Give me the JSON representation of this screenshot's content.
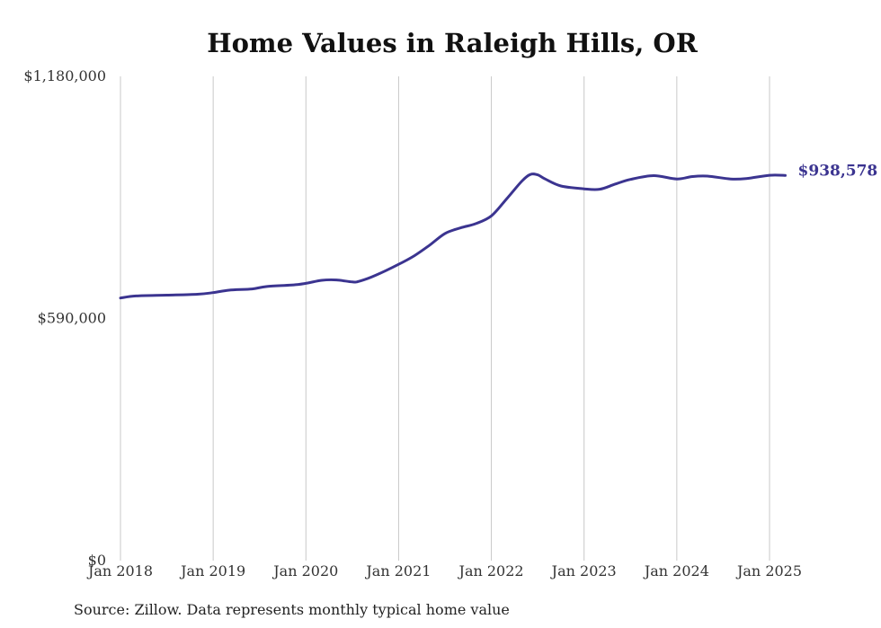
{
  "chart_data": {
    "type": "line",
    "title": "Home Values in Raleigh Hills, OR",
    "xlabel": "",
    "ylabel": "",
    "ylim": [
      0,
      1180000
    ],
    "yticks": [
      {
        "value": 0,
        "label": "$0"
      },
      {
        "value": 590000,
        "label": "$590,000"
      },
      {
        "value": 1180000,
        "label": "$1,180,000"
      }
    ],
    "xticks": [
      {
        "value": 2018.0,
        "label": "Jan 2018"
      },
      {
        "value": 2019.0,
        "label": "Jan 2019"
      },
      {
        "value": 2020.0,
        "label": "Jan 2020"
      },
      {
        "value": 2021.0,
        "label": "Jan 2021"
      },
      {
        "value": 2022.0,
        "label": "Jan 2022"
      },
      {
        "value": 2023.0,
        "label": "Jan 2023"
      },
      {
        "value": 2024.0,
        "label": "Jan 2024"
      },
      {
        "value": 2025.0,
        "label": "Jan 2025"
      }
    ],
    "xlim": [
      2018.0,
      2025.17
    ],
    "grid": "vertical",
    "series": [
      {
        "color": "#3b3490",
        "end_label": "$938,578",
        "points": [
          [
            2018.0,
            640000
          ],
          [
            2018.17,
            645000
          ],
          [
            2018.5,
            647000
          ],
          [
            2018.83,
            649000
          ],
          [
            2019.0,
            653000
          ],
          [
            2019.17,
            659000
          ],
          [
            2019.42,
            662000
          ],
          [
            2019.58,
            668000
          ],
          [
            2019.92,
            673000
          ],
          [
            2020.17,
            683000
          ],
          [
            2020.33,
            684000
          ],
          [
            2020.5,
            679000
          ],
          [
            2020.58,
            681000
          ],
          [
            2020.75,
            695000
          ],
          [
            2021.0,
            722000
          ],
          [
            2021.17,
            743000
          ],
          [
            2021.33,
            768000
          ],
          [
            2021.5,
            797000
          ],
          [
            2021.67,
            811000
          ],
          [
            2021.83,
            821000
          ],
          [
            2022.0,
            840000
          ],
          [
            2022.17,
            883000
          ],
          [
            2022.33,
            925000
          ],
          [
            2022.42,
            941000
          ],
          [
            2022.5,
            940000
          ],
          [
            2022.58,
            930000
          ],
          [
            2022.75,
            913000
          ],
          [
            2023.0,
            906000
          ],
          [
            2023.17,
            905000
          ],
          [
            2023.33,
            917000
          ],
          [
            2023.5,
            929000
          ],
          [
            2023.75,
            938000
          ],
          [
            2024.0,
            930000
          ],
          [
            2024.17,
            936000
          ],
          [
            2024.33,
            937000
          ],
          [
            2024.58,
            930000
          ],
          [
            2024.75,
            931000
          ],
          [
            2025.0,
            939000
          ],
          [
            2025.17,
            938578
          ]
        ]
      }
    ]
  },
  "footer": {
    "source": "Source: Zillow. Data represents monthly typical home value"
  }
}
